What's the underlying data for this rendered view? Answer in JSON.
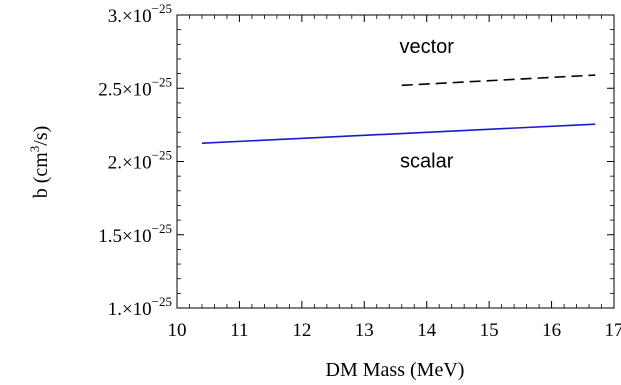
{
  "chart_data": {
    "type": "line",
    "title": "",
    "xlabel": "DM Mass (MeV)",
    "ylabel_base": "b  (cm",
    "ylabel_sup": "3",
    "ylabel_tail": "/s)",
    "xlim": [
      10,
      17
    ],
    "ylim": [
      1e-25,
      3e-25
    ],
    "x_ticks": [
      10,
      11,
      12,
      13,
      14,
      15,
      16,
      17
    ],
    "x_tick_labels": [
      "10",
      "11",
      "12",
      "13",
      "14",
      "15",
      "16",
      "17"
    ],
    "y_ticks": [
      {
        "value": 1e-25,
        "mantissa": "1.",
        "exponent": "−25"
      },
      {
        "value": 1.5e-25,
        "mantissa": "1.5",
        "exponent": "−25"
      },
      {
        "value": 2e-25,
        "mantissa": "2.",
        "exponent": "−25"
      },
      {
        "value": 2.5e-25,
        "mantissa": "2.5",
        "exponent": "−25"
      },
      {
        "value": 3e-25,
        "mantissa": "3.",
        "exponent": "−25"
      }
    ],
    "grid": false,
    "series": [
      {
        "name": "scalar",
        "color": "#1a1acc",
        "dash": "solid",
        "x": [
          10.4,
          16.7
        ],
        "y": [
          2.125e-25,
          2.255e-25
        ]
      },
      {
        "name": "vector",
        "color": "#000000",
        "dash": "dashed",
        "x": [
          13.6,
          16.7
        ],
        "y": [
          2.52e-25,
          2.59e-25
        ]
      }
    ],
    "annotations": [
      {
        "text": "vector",
        "x": 14.0,
        "y": 2.74e-25
      },
      {
        "text": "scalar",
        "x": 14.0,
        "y": 1.96e-25
      }
    ]
  }
}
